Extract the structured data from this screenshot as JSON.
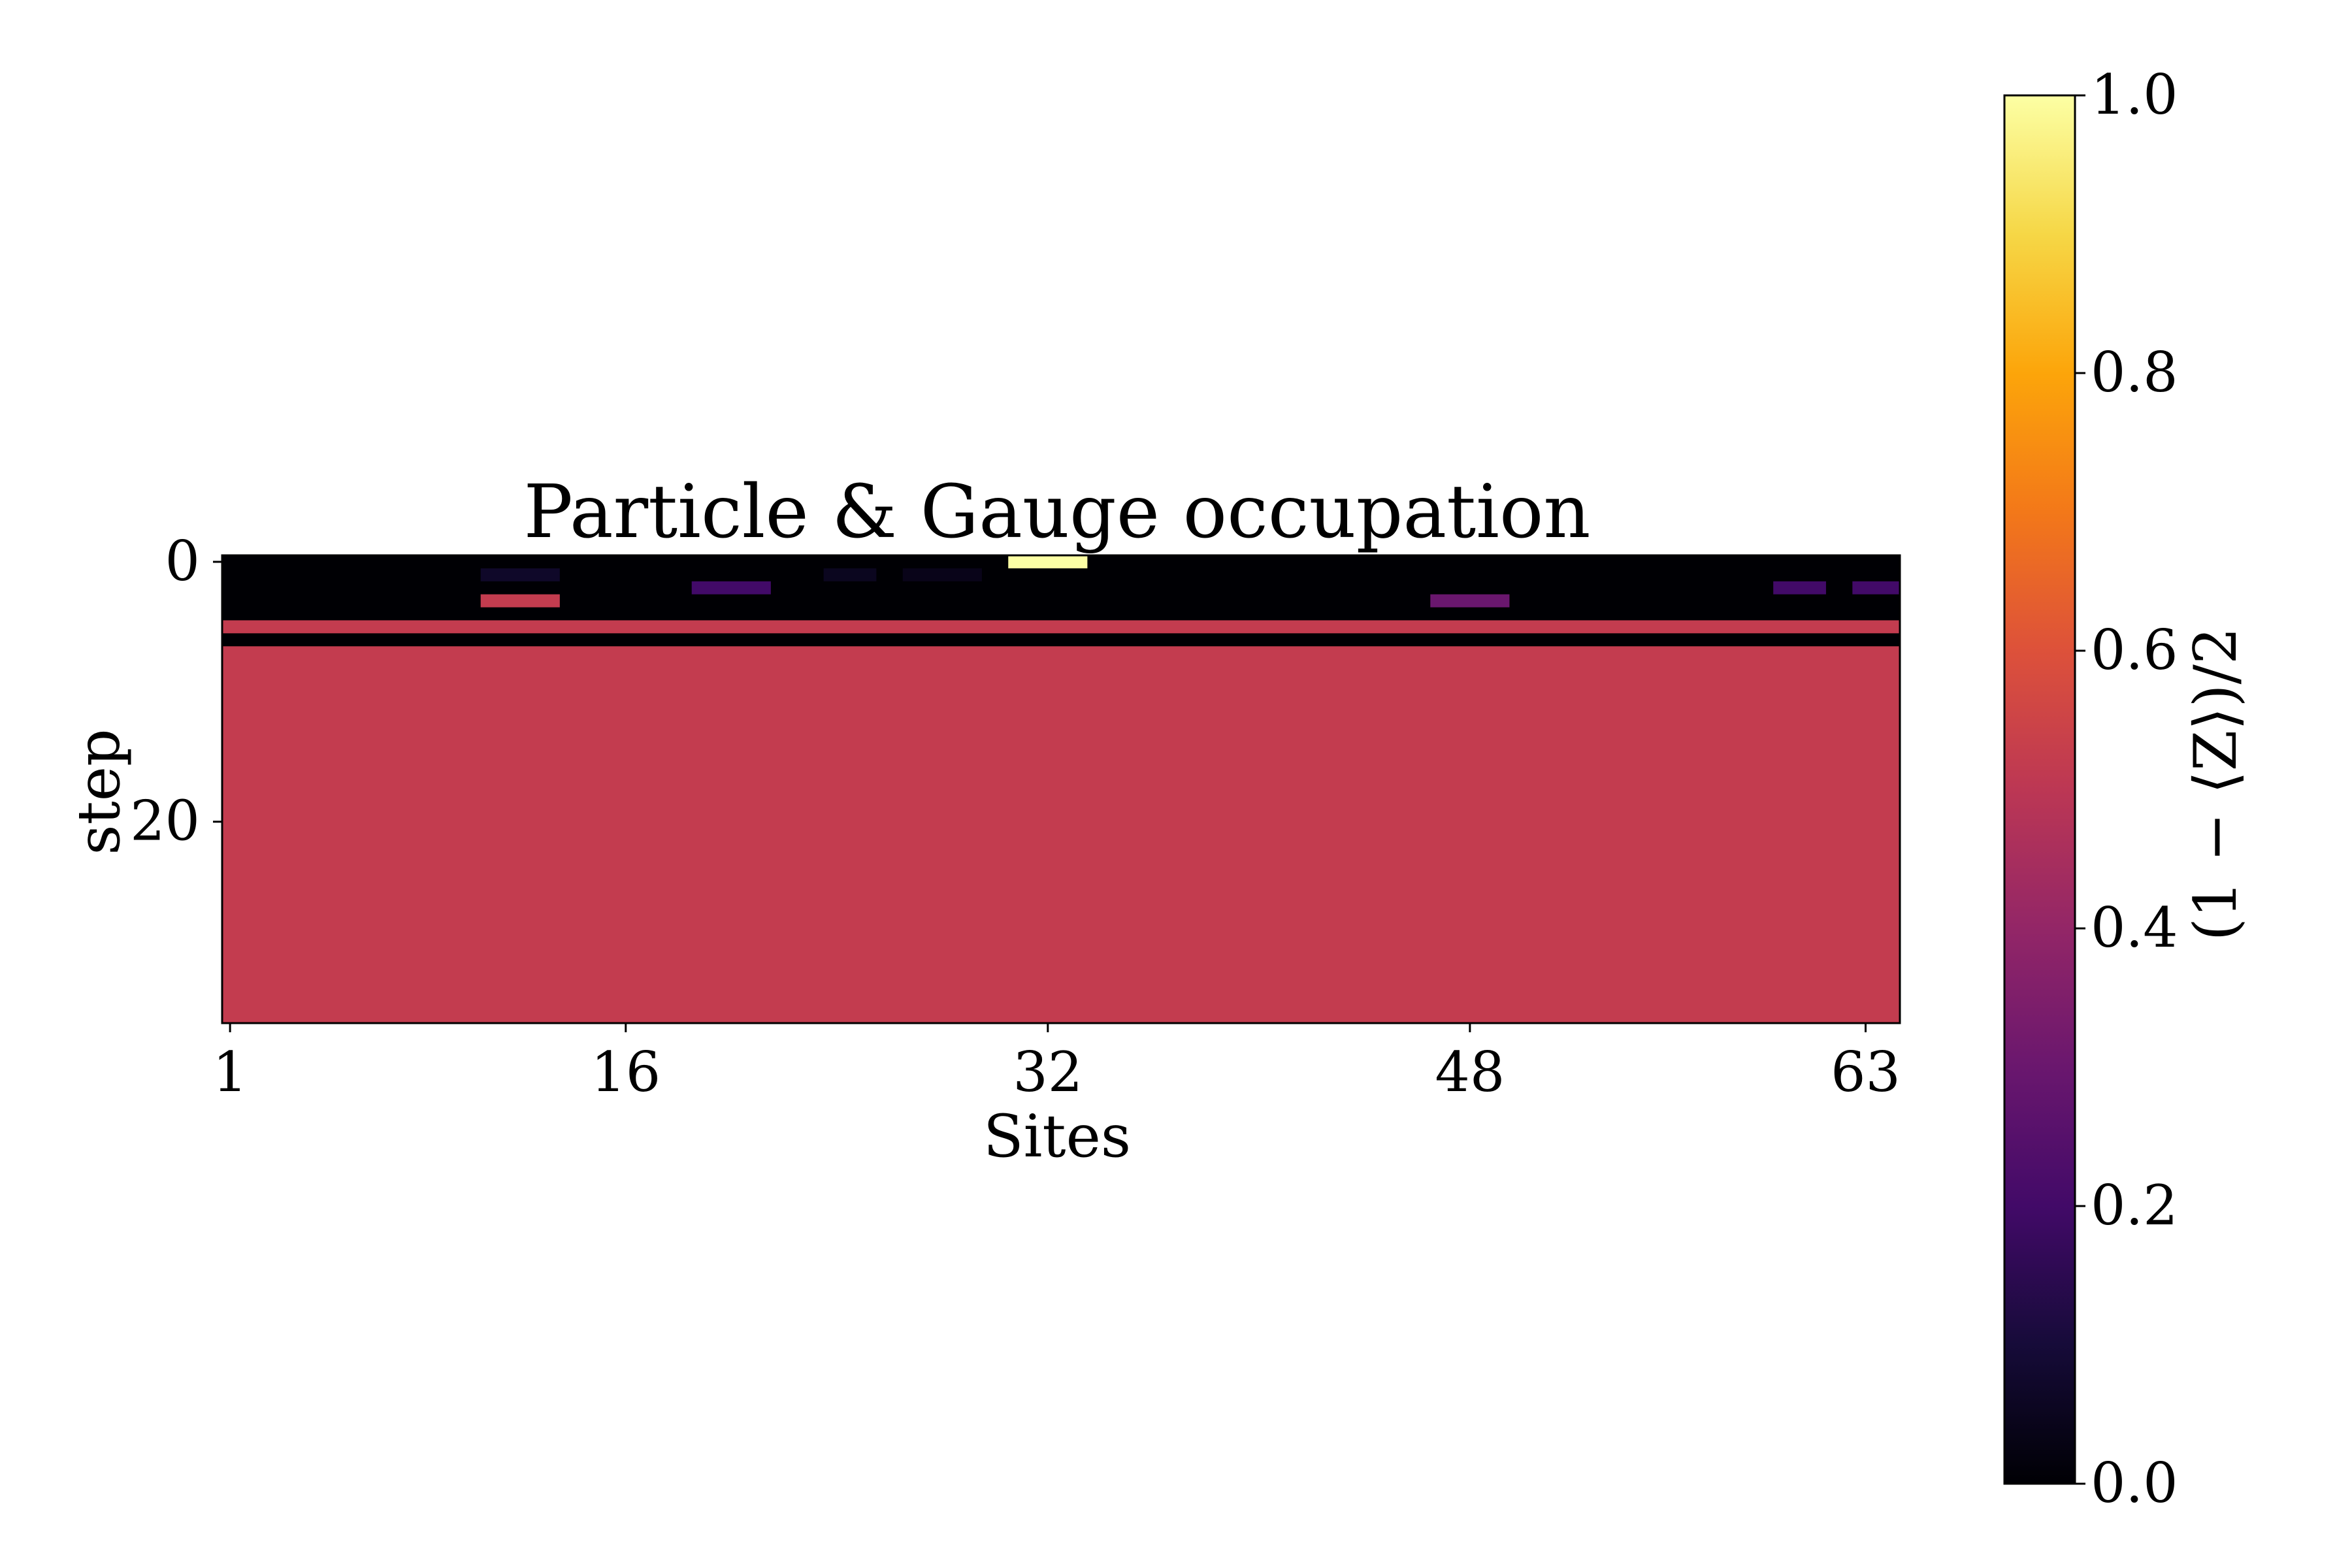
{
  "chart_data": {
    "type": "heatmap",
    "title": "Particle & Gauge occupation",
    "xlabel": "Sites",
    "ylabel": "step",
    "colorbar_label": "(1 − ⟨Z⟩)/2",
    "colormap": "inferno",
    "x_range": [
      1,
      63
    ],
    "y_range": [
      0,
      35
    ],
    "x_ticks": [
      1,
      16,
      32,
      48,
      63
    ],
    "y_ticks": [
      0,
      20
    ],
    "colorbar_ticks": [
      0.0,
      0.2,
      0.4,
      0.6,
      0.8,
      1.0
    ],
    "colorbar_tick_labels": [
      "0.0",
      "0.2",
      "0.4",
      "0.6",
      "0.8",
      "1.0"
    ],
    "colorbar_range": [
      0.0,
      1.0
    ],
    "background_value": 0.0,
    "row_bands": [
      {
        "step_start": 5,
        "step_end": 5,
        "value": 0.52
      },
      {
        "step_start": 7,
        "step_end": 35,
        "value": 0.52
      }
    ],
    "cells": [
      {
        "step": 0,
        "site_start": 31,
        "site_end": 33,
        "value": 1.0
      },
      {
        "step": 1,
        "site_start": 11,
        "site_end": 13,
        "value": 0.07
      },
      {
        "step": 1,
        "site_start": 24,
        "site_end": 25,
        "value": 0.05
      },
      {
        "step": 1,
        "site_start": 27,
        "site_end": 29,
        "value": 0.04
      },
      {
        "step": 2,
        "site_start": 19,
        "site_end": 21,
        "value": 0.2
      },
      {
        "step": 2,
        "site_start": 60,
        "site_end": 61,
        "value": 0.2
      },
      {
        "step": 2,
        "site_start": 63,
        "site_end": 64,
        "value": 0.2
      },
      {
        "step": 3,
        "site_start": 11,
        "site_end": 13,
        "value": 0.52
      },
      {
        "step": 3,
        "site_start": 47,
        "site_end": 49,
        "value": 0.3
      }
    ]
  }
}
